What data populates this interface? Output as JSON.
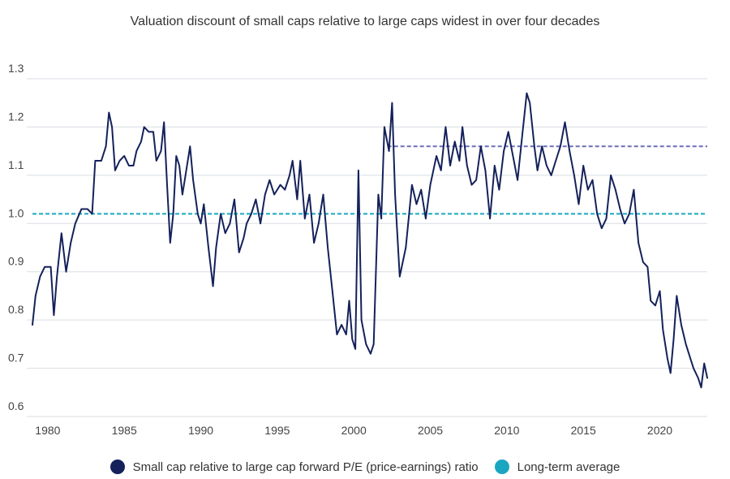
{
  "chart_data": {
    "type": "line",
    "title": "Valuation discount of small caps relative to large caps widest in over four decades",
    "xlabel": "",
    "ylabel": "",
    "xlim": [
      1979.0,
      2023.1
    ],
    "ylim": [
      0.6,
      1.3
    ],
    "yticks": [
      "1.3",
      "1.2",
      "1.1",
      "1.0",
      "0.9",
      "0.8",
      "0.7",
      "0.6"
    ],
    "xticks": [
      "1980",
      "1985",
      "1990",
      "1995",
      "2000",
      "2005",
      "2010",
      "2015",
      "2020"
    ],
    "grid": true,
    "legend_position": "bottom",
    "series": [
      {
        "name": "Small cap relative to large cap forward P/E (price-earnings) ratio",
        "color": "#14215a",
        "points": [
          [
            1979.0,
            0.79
          ],
          [
            1979.2,
            0.85
          ],
          [
            1979.5,
            0.89
          ],
          [
            1979.8,
            0.91
          ],
          [
            1980.2,
            0.91
          ],
          [
            1980.4,
            0.81
          ],
          [
            1980.6,
            0.89
          ],
          [
            1980.9,
            0.98
          ],
          [
            1981.2,
            0.9
          ],
          [
            1981.5,
            0.96
          ],
          [
            1981.8,
            1.0
          ],
          [
            1982.2,
            1.03
          ],
          [
            1982.6,
            1.03
          ],
          [
            1982.9,
            1.02
          ],
          [
            1983.1,
            1.13
          ],
          [
            1983.5,
            1.13
          ],
          [
            1983.8,
            1.16
          ],
          [
            1984.0,
            1.23
          ],
          [
            1984.2,
            1.2
          ],
          [
            1984.4,
            1.11
          ],
          [
            1984.7,
            1.13
          ],
          [
            1985.0,
            1.14
          ],
          [
            1985.3,
            1.12
          ],
          [
            1985.6,
            1.12
          ],
          [
            1985.8,
            1.15
          ],
          [
            1986.1,
            1.17
          ],
          [
            1986.3,
            1.2
          ],
          [
            1986.6,
            1.19
          ],
          [
            1986.9,
            1.19
          ],
          [
            1987.1,
            1.13
          ],
          [
            1987.4,
            1.15
          ],
          [
            1987.6,
            1.21
          ],
          [
            1987.8,
            1.08
          ],
          [
            1988.0,
            0.96
          ],
          [
            1988.2,
            1.02
          ],
          [
            1988.4,
            1.14
          ],
          [
            1988.6,
            1.12
          ],
          [
            1988.8,
            1.06
          ],
          [
            1989.0,
            1.1
          ],
          [
            1989.3,
            1.16
          ],
          [
            1989.5,
            1.09
          ],
          [
            1989.8,
            1.02
          ],
          [
            1990.0,
            1.0
          ],
          [
            1990.2,
            1.04
          ],
          [
            1990.5,
            0.95
          ],
          [
            1990.8,
            0.87
          ],
          [
            1991.0,
            0.95
          ],
          [
            1991.3,
            1.02
          ],
          [
            1991.6,
            0.98
          ],
          [
            1991.9,
            1.0
          ],
          [
            1992.2,
            1.05
          ],
          [
            1992.5,
            0.94
          ],
          [
            1992.8,
            0.97
          ],
          [
            1993.0,
            1.0
          ],
          [
            1993.3,
            1.02
          ],
          [
            1993.6,
            1.05
          ],
          [
            1993.9,
            1.0
          ],
          [
            1994.2,
            1.06
          ],
          [
            1994.5,
            1.09
          ],
          [
            1994.8,
            1.06
          ],
          [
            1995.2,
            1.08
          ],
          [
            1995.5,
            1.07
          ],
          [
            1995.8,
            1.1
          ],
          [
            1996.0,
            1.13
          ],
          [
            1996.3,
            1.05
          ],
          [
            1996.5,
            1.13
          ],
          [
            1996.8,
            1.01
          ],
          [
            1997.1,
            1.06
          ],
          [
            1997.4,
            0.96
          ],
          [
            1997.7,
            1.0
          ],
          [
            1998.0,
            1.06
          ],
          [
            1998.3,
            0.95
          ],
          [
            1998.6,
            0.86
          ],
          [
            1998.9,
            0.77
          ],
          [
            1999.2,
            0.79
          ],
          [
            1999.5,
            0.77
          ],
          [
            1999.7,
            0.84
          ],
          [
            1999.9,
            0.76
          ],
          [
            2000.1,
            0.74
          ],
          [
            2000.3,
            1.11
          ],
          [
            2000.5,
            0.8
          ],
          [
            2000.8,
            0.75
          ],
          [
            2001.1,
            0.73
          ],
          [
            2001.3,
            0.75
          ],
          [
            2001.6,
            1.06
          ],
          [
            2001.8,
            1.01
          ],
          [
            2002.0,
            1.2
          ],
          [
            2002.3,
            1.15
          ],
          [
            2002.5,
            1.25
          ],
          [
            2002.7,
            1.06
          ],
          [
            2003.0,
            0.89
          ],
          [
            2003.4,
            0.95
          ],
          [
            2003.8,
            1.08
          ],
          [
            2004.1,
            1.04
          ],
          [
            2004.4,
            1.07
          ],
          [
            2004.7,
            1.01
          ],
          [
            2005.0,
            1.08
          ],
          [
            2005.4,
            1.14
          ],
          [
            2005.7,
            1.11
          ],
          [
            2006.0,
            1.2
          ],
          [
            2006.3,
            1.12
          ],
          [
            2006.6,
            1.17
          ],
          [
            2006.9,
            1.13
          ],
          [
            2007.1,
            1.2
          ],
          [
            2007.4,
            1.12
          ],
          [
            2007.7,
            1.08
          ],
          [
            2008.0,
            1.09
          ],
          [
            2008.3,
            1.16
          ],
          [
            2008.6,
            1.11
          ],
          [
            2008.9,
            1.01
          ],
          [
            2009.2,
            1.12
          ],
          [
            2009.5,
            1.07
          ],
          [
            2009.8,
            1.15
          ],
          [
            2010.1,
            1.19
          ],
          [
            2010.4,
            1.14
          ],
          [
            2010.7,
            1.09
          ],
          [
            2011.0,
            1.18
          ],
          [
            2011.3,
            1.27
          ],
          [
            2011.5,
            1.25
          ],
          [
            2011.8,
            1.16
          ],
          [
            2012.0,
            1.11
          ],
          [
            2012.3,
            1.16
          ],
          [
            2012.6,
            1.12
          ],
          [
            2012.9,
            1.1
          ],
          [
            2013.2,
            1.13
          ],
          [
            2013.5,
            1.16
          ],
          [
            2013.8,
            1.21
          ],
          [
            2014.1,
            1.15
          ],
          [
            2014.4,
            1.1
          ],
          [
            2014.7,
            1.04
          ],
          [
            2015.0,
            1.12
          ],
          [
            2015.3,
            1.07
          ],
          [
            2015.6,
            1.09
          ],
          [
            2015.9,
            1.02
          ],
          [
            2016.2,
            0.99
          ],
          [
            2016.5,
            1.01
          ],
          [
            2016.8,
            1.1
          ],
          [
            2017.1,
            1.07
          ],
          [
            2017.4,
            1.03
          ],
          [
            2017.7,
            1.0
          ],
          [
            2018.0,
            1.02
          ],
          [
            2018.3,
            1.07
          ],
          [
            2018.6,
            0.96
          ],
          [
            2018.9,
            0.92
          ],
          [
            2019.2,
            0.91
          ],
          [
            2019.4,
            0.84
          ],
          [
            2019.7,
            0.83
          ],
          [
            2020.0,
            0.86
          ],
          [
            2020.2,
            0.78
          ],
          [
            2020.5,
            0.72
          ],
          [
            2020.7,
            0.69
          ],
          [
            2020.9,
            0.76
          ],
          [
            2021.1,
            0.85
          ],
          [
            2021.4,
            0.79
          ],
          [
            2021.7,
            0.75
          ],
          [
            2022.0,
            0.72
          ],
          [
            2022.2,
            0.7
          ],
          [
            2022.5,
            0.68
          ],
          [
            2022.7,
            0.66
          ],
          [
            2022.9,
            0.71
          ],
          [
            2023.1,
            0.68
          ]
        ]
      }
    ],
    "reference_lines": [
      {
        "name": "Long-term average",
        "color": "#1aa6c0",
        "y": 1.02,
        "x_range": [
          1979.0,
          2023.1
        ]
      },
      {
        "name": "",
        "color": "#6a6fb7",
        "y": 1.16,
        "x_range": [
          2002.2,
          2023.1
        ]
      }
    ]
  },
  "legend": {
    "items": [
      {
        "label": "Small cap relative to large cap forward P/E (price-earnings) ratio",
        "color": "#14215a"
      },
      {
        "label": "Long-term average",
        "color": "#1aa6c0"
      }
    ]
  }
}
